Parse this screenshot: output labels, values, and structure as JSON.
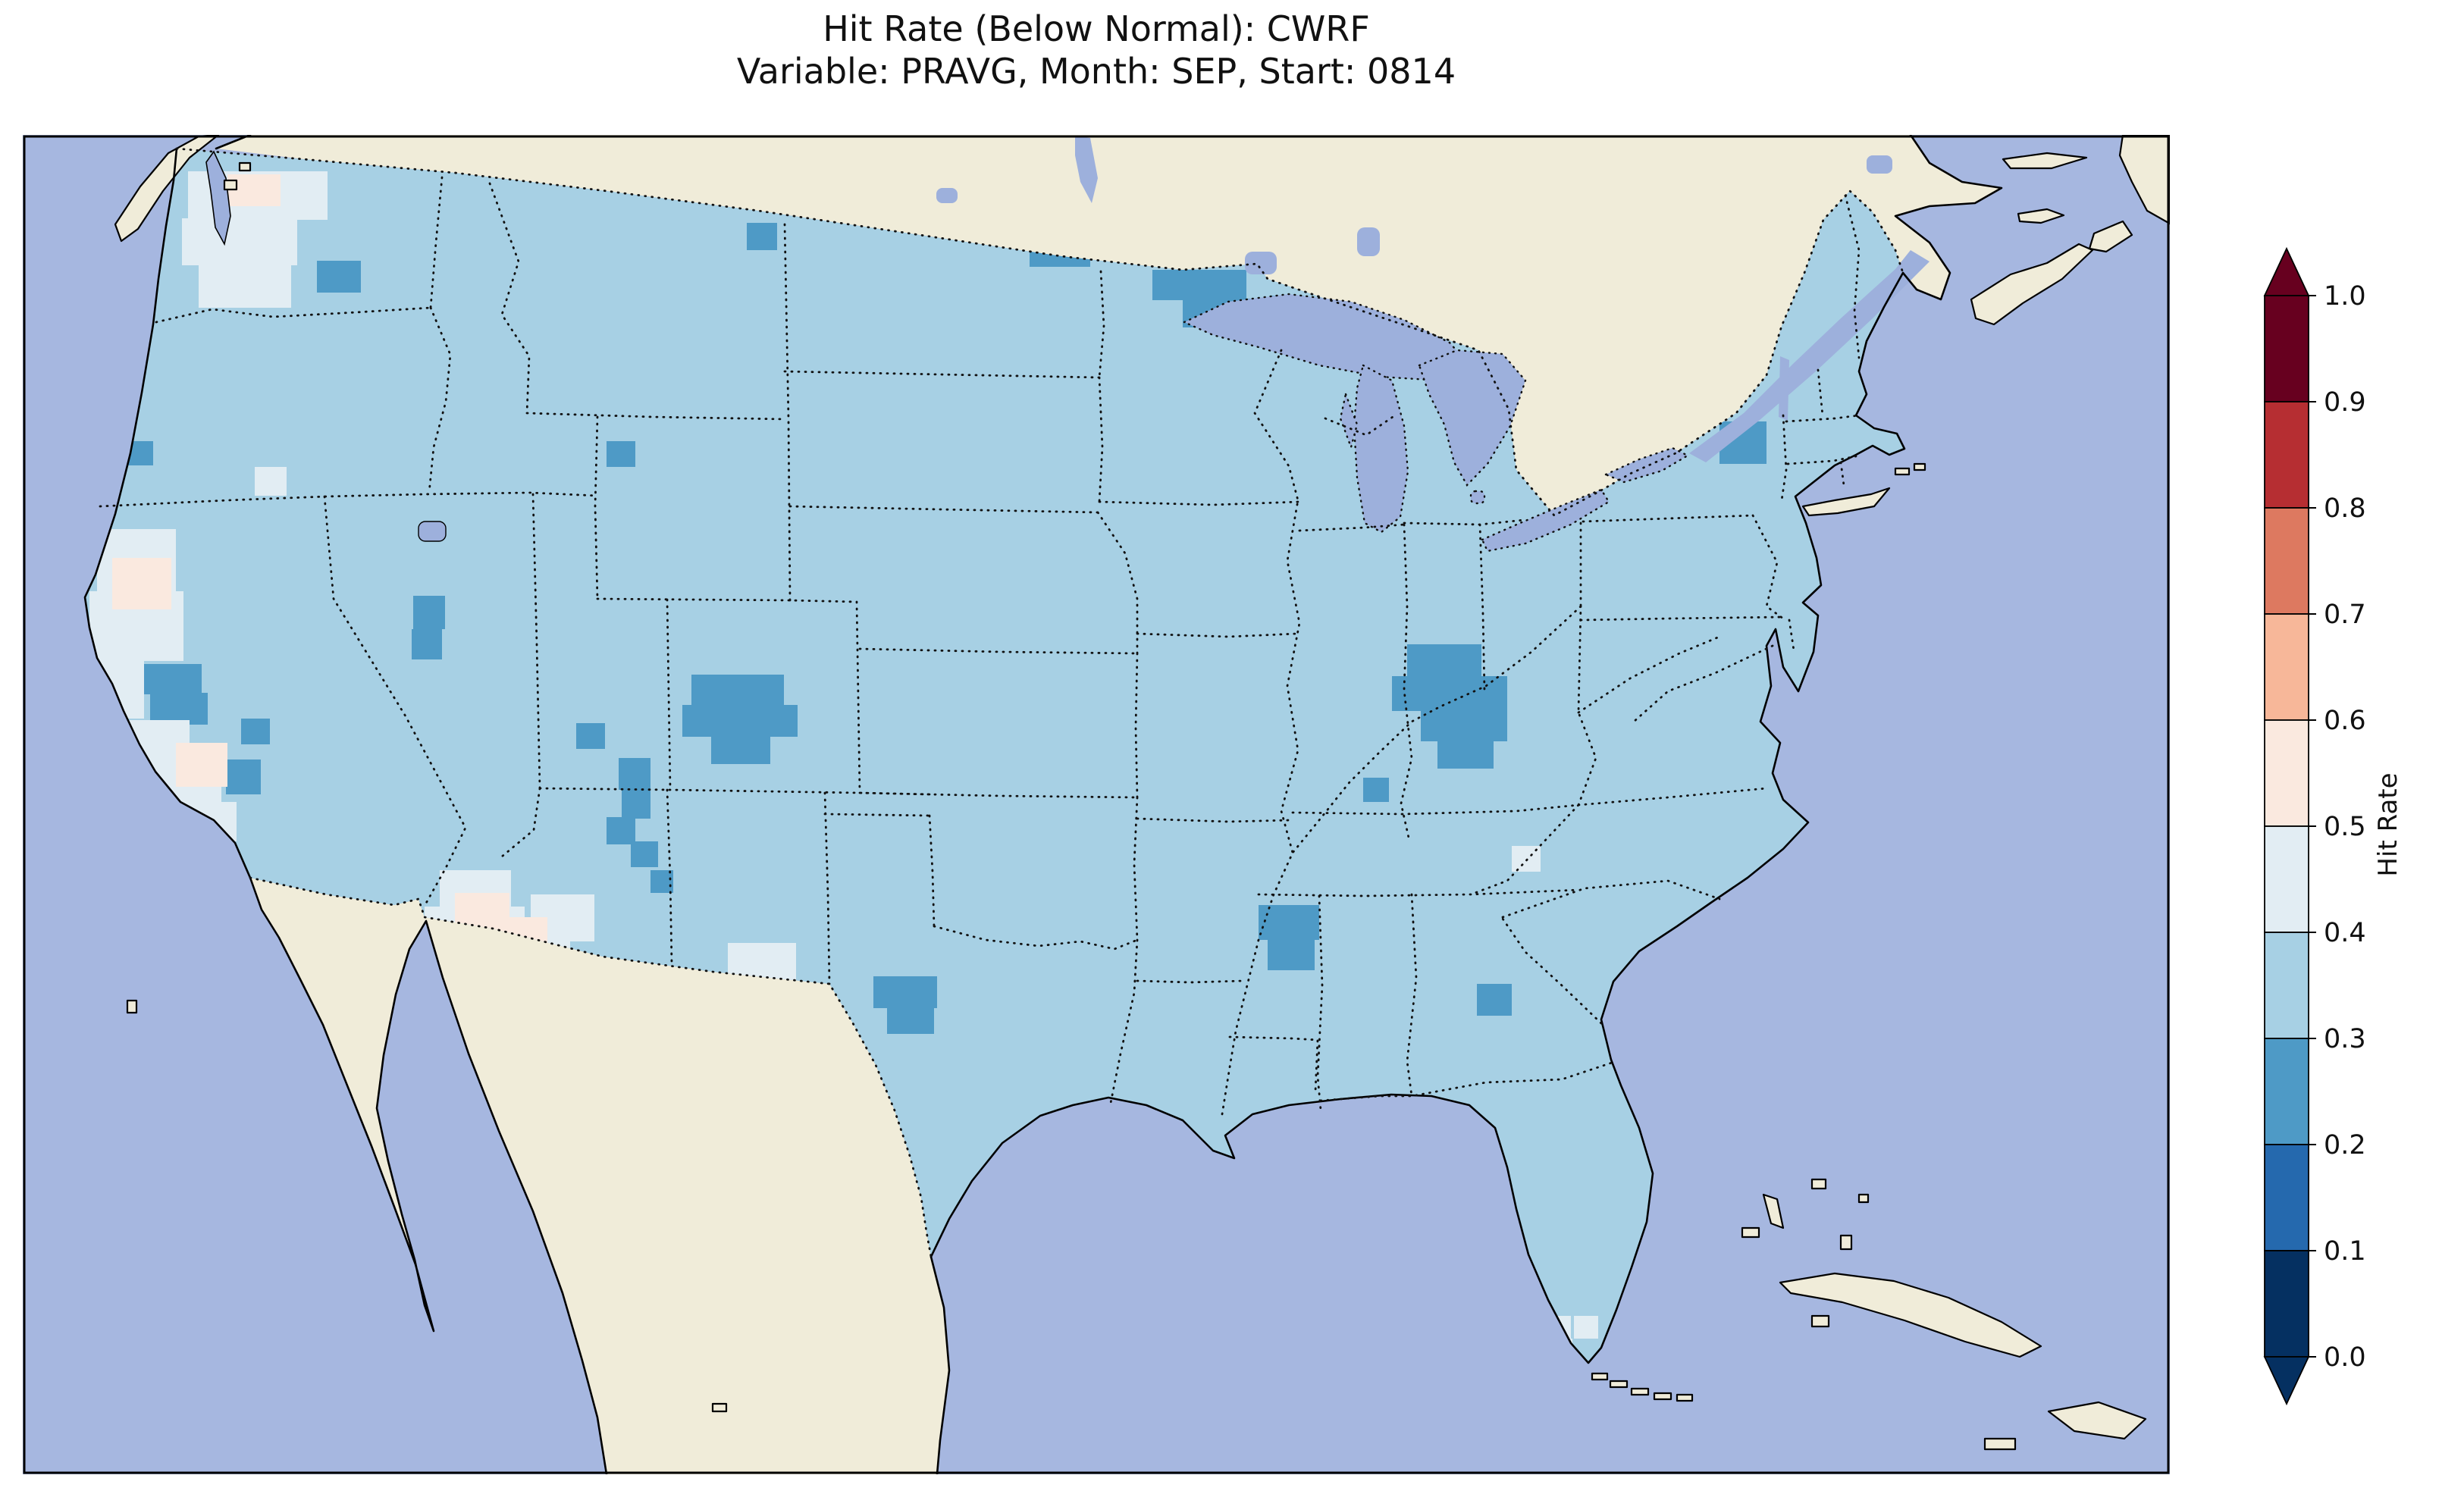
{
  "title": {
    "line1": "Hit Rate (Below Normal): CWRF",
    "line2": "Variable: PRAVG, Month: SEP, Start: 0814"
  },
  "colorbar": {
    "label": "Hit Rate",
    "ticks": [
      "1.0",
      "0.9",
      "0.8",
      "0.7",
      "0.6",
      "0.5",
      "0.4",
      "0.3",
      "0.2",
      "0.1",
      "0.0"
    ],
    "bin_colors": [
      "#053061",
      "#2569ae",
      "#4e9ac6",
      "#a7d0e4",
      "#e2edf3",
      "#fae9df",
      "#f7b799",
      "#dd7960",
      "#b62e32",
      "#67001f"
    ],
    "extend_over": "#67001f",
    "extend_under": "#053061"
  },
  "map": {
    "colors": {
      "ocean": "#a6b7e0",
      "lake": "#9db0dc",
      "land": "#f0ecd9",
      "us_base": "#a7d0e4",
      "coast": "#000000",
      "border_dots": "#111111",
      "bins": [
        "#053061",
        "#2569ae",
        "#4e9ac6",
        "#a7d0e4",
        "#e2edf3",
        "#fae9df",
        "#f7b799",
        "#dd7960",
        "#b62e32",
        "#67001f"
      ]
    },
    "cells": [
      [
        418,
        344,
        58,
        42,
        2
      ],
      [
        985,
        294,
        40,
        36,
        2
      ],
      [
        1358,
        314,
        80,
        38,
        2
      ],
      [
        1520,
        356,
        124,
        40,
        2
      ],
      [
        1560,
        394,
        118,
        38,
        2
      ],
      [
        1676,
        390,
        44,
        36,
        2
      ],
      [
        2268,
        556,
        62,
        56,
        2
      ],
      [
        166,
        582,
        36,
        32,
        2
      ],
      [
        186,
        876,
        80,
        40,
        2
      ],
      [
        198,
        914,
        76,
        42,
        2
      ],
      [
        318,
        948,
        38,
        34,
        2
      ],
      [
        298,
        1002,
        46,
        46,
        2
      ],
      [
        545,
        786,
        42,
        44,
        2
      ],
      [
        543,
        830,
        40,
        40,
        2
      ],
      [
        800,
        582,
        38,
        34,
        2
      ],
      [
        912,
        890,
        122,
        42,
        2
      ],
      [
        900,
        930,
        152,
        42,
        2
      ],
      [
        938,
        970,
        78,
        38,
        2
      ],
      [
        760,
        954,
        38,
        34,
        2
      ],
      [
        816,
        1000,
        42,
        42,
        2
      ],
      [
        820,
        1042,
        38,
        38,
        2
      ],
      [
        800,
        1078,
        38,
        36,
        2
      ],
      [
        832,
        1110,
        36,
        34,
        2
      ],
      [
        858,
        1148,
        30,
        30,
        2
      ],
      [
        1152,
        1288,
        84,
        42,
        2
      ],
      [
        1170,
        1326,
        62,
        38,
        2
      ],
      [
        1856,
        850,
        98,
        44,
        2
      ],
      [
        1836,
        892,
        152,
        46,
        2
      ],
      [
        1874,
        936,
        114,
        42,
        2
      ],
      [
        1896,
        976,
        74,
        38,
        2
      ],
      [
        1798,
        1026,
        34,
        32,
        2
      ],
      [
        1660,
        1194,
        80,
        46,
        2
      ],
      [
        1672,
        1238,
        62,
        42,
        2
      ],
      [
        1948,
        1298,
        46,
        42,
        2
      ],
      [
        248,
        226,
        184,
        64,
        4
      ],
      [
        240,
        288,
        152,
        62,
        4
      ],
      [
        262,
        348,
        122,
        58,
        4
      ],
      [
        128,
        698,
        104,
        84,
        4
      ],
      [
        118,
        780,
        124,
        92,
        4
      ],
      [
        120,
        868,
        70,
        80,
        4
      ],
      [
        160,
        950,
        90,
        70,
        4
      ],
      [
        198,
        1018,
        94,
        62,
        4
      ],
      [
        240,
        1058,
        72,
        52,
        4
      ],
      [
        336,
        616,
        42,
        38,
        4
      ],
      [
        580,
        1148,
        94,
        52,
        4
      ],
      [
        560,
        1196,
        132,
        62,
        4
      ],
      [
        640,
        1242,
        112,
        42,
        4
      ],
      [
        700,
        1180,
        84,
        62,
        4
      ],
      [
        960,
        1244,
        90,
        54,
        4
      ],
      [
        1994,
        1116,
        38,
        34,
        4
      ],
      [
        2040,
        1736,
        32,
        30,
        4
      ],
      [
        2076,
        1736,
        32,
        30,
        4
      ],
      [
        2044,
        1766,
        30,
        28,
        4
      ],
      [
        300,
        230,
        70,
        42,
        5
      ],
      [
        148,
        736,
        78,
        68,
        5
      ],
      [
        232,
        980,
        68,
        58,
        5
      ],
      [
        600,
        1178,
        72,
        52,
        5
      ],
      [
        660,
        1210,
        62,
        48,
        5
      ],
      [
        990,
        1316,
        50,
        44,
        5
      ]
    ]
  },
  "chart_data": {
    "type": "heatmap",
    "title": "Hit Rate (Below Normal): CWRF",
    "subtitle": "Variable: PRAVG, Month: SEP, Start: 0814",
    "region": "Continental United States (map with state borders, gridded field)",
    "colormap": "RdBu_r, 10 discrete bins, extended both ends",
    "bin_edges": [
      0.0,
      0.1,
      0.2,
      0.3,
      0.4,
      0.5,
      0.6,
      0.7,
      0.8,
      0.9,
      1.0
    ],
    "bin_colors": [
      "#053061",
      "#2569ae",
      "#4e9ac6",
      "#a7d0e4",
      "#e2edf3",
      "#fae9df",
      "#f7b799",
      "#dd7960",
      "#b62e32",
      "#67001f"
    ],
    "colorbar_label": "Hit Rate",
    "colorbar_ticks": [
      0.0,
      0.1,
      0.2,
      0.3,
      0.4,
      0.5,
      0.6,
      0.7,
      0.8,
      0.9,
      1.0
    ],
    "field_summary": [
      {
        "area": "Most of the contiguous US",
        "hit_rate": "0.3-0.4"
      },
      {
        "area": "North Dakota / northern Minnesota border, NW Washington, central Montana",
        "hit_rate": "0.2-0.3"
      },
      {
        "area": "Sierra Nevada California, eastern Nevada/Utah, south-central Colorado into New Mexico, Wyoming spot",
        "hit_rate": "0.2-0.3"
      },
      {
        "area": "Central Texas, Kentucky/southern Indiana cluster, western Mississippi, Georgia spot, upstate New York",
        "hit_rate": "0.2-0.3"
      },
      {
        "area": "Western Washington, coastal/central California, southern Arizona-New Mexico border strip, far west Texas, south Florida",
        "hit_rate": "0.4-0.5 with small pockets 0.5-0.6"
      }
    ]
  }
}
